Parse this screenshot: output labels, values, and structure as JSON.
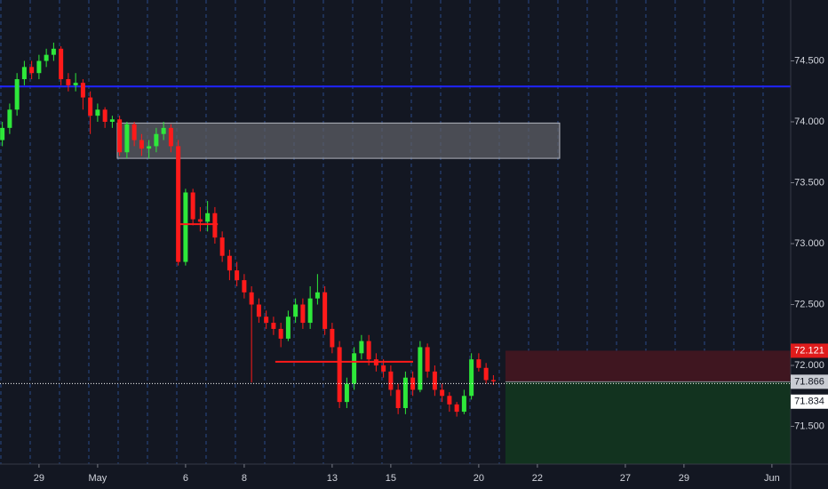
{
  "chart_data": {
    "type": "candlestick",
    "x": [
      -1.25,
      -1,
      -0.75,
      -0.5,
      -0.25,
      0,
      0.25,
      0.5,
      0.75,
      1,
      1.25,
      1.5,
      1.75,
      2,
      2.25,
      2.5,
      2.75,
      3,
      3.25,
      3.5,
      3.75,
      4,
      4.25,
      4.5,
      4.75,
      5,
      5.25,
      5.5,
      5.75,
      6,
      6.25,
      6.5,
      6.75,
      7,
      7.25,
      7.5,
      7.75,
      8,
      8.25,
      8.5,
      8.75,
      9,
      9.25,
      9.5,
      9.75,
      10,
      10.25,
      10.5,
      10.75,
      11,
      11.25,
      11.5,
      11.75,
      12,
      12.25,
      12.5,
      12.75,
      13,
      13.25,
      13.5,
      13.75,
      14,
      14.25,
      14.5,
      14.75,
      15,
      15.25,
      15.5
    ],
    "open": [
      73.85,
      73.95,
      74.1,
      74.35,
      74.45,
      74.4,
      74.5,
      74.55,
      74.6,
      74.35,
      74.3,
      74.32,
      74.2,
      74.05,
      74.1,
      74.0,
      74.02,
      73.75,
      73.98,
      73.85,
      73.78,
      73.8,
      73.9,
      73.95,
      73.8,
      72.85,
      73.42,
      73.2,
      73.18,
      73.25,
      73.05,
      72.9,
      72.78,
      72.7,
      72.6,
      72.5,
      72.4,
      72.35,
      72.3,
      72.22,
      72.4,
      72.5,
      72.35,
      72.55,
      72.6,
      72.3,
      72.15,
      71.7,
      71.85,
      72.1,
      72.2,
      72.05,
      72.0,
      71.95,
      71.8,
      71.65,
      71.9,
      71.8,
      72.15,
      71.95,
      71.8,
      71.75,
      71.68,
      71.62,
      71.75,
      72.05,
      71.98,
      71.88
    ],
    "high": [
      74.0,
      74.15,
      74.4,
      74.5,
      74.5,
      74.55,
      74.6,
      74.65,
      74.62,
      74.4,
      74.4,
      74.35,
      74.25,
      74.15,
      74.12,
      74.05,
      74.05,
      74.0,
      74.0,
      73.9,
      73.85,
      73.95,
      74.0,
      73.98,
      73.85,
      73.45,
      73.45,
      73.3,
      73.35,
      73.3,
      73.1,
      72.95,
      72.85,
      72.75,
      72.65,
      72.55,
      72.45,
      72.4,
      72.35,
      72.45,
      72.55,
      72.55,
      72.65,
      72.75,
      72.65,
      72.35,
      72.2,
      71.9,
      72.15,
      72.25,
      72.25,
      72.1,
      72.05,
      72.0,
      71.85,
      71.95,
      71.95,
      72.2,
      72.18,
      72.0,
      71.85,
      71.78,
      71.7,
      71.8,
      72.1,
      72.1,
      72.02,
      71.92
    ],
    "low": [
      73.8,
      73.9,
      74.05,
      74.3,
      74.35,
      74.35,
      74.45,
      74.5,
      74.3,
      74.25,
      74.25,
      74.1,
      73.9,
      74.0,
      73.95,
      73.95,
      73.72,
      73.7,
      73.8,
      73.72,
      73.7,
      73.75,
      73.85,
      73.75,
      72.82,
      72.82,
      73.15,
      73.1,
      73.1,
      73.0,
      72.85,
      72.7,
      72.65,
      72.55,
      71.86,
      72.35,
      72.3,
      72.25,
      72.15,
      72.2,
      72.35,
      72.3,
      72.3,
      72.5,
      72.25,
      72.1,
      71.65,
      71.65,
      71.8,
      72.05,
      72.0,
      71.95,
      71.9,
      71.75,
      71.6,
      71.6,
      71.75,
      71.78,
      71.9,
      71.75,
      71.7,
      71.62,
      71.58,
      71.6,
      71.72,
      71.95,
      71.85,
      71.84
    ],
    "close": [
      73.95,
      74.1,
      74.35,
      74.45,
      74.4,
      74.5,
      74.55,
      74.6,
      74.35,
      74.3,
      74.32,
      74.2,
      74.05,
      74.1,
      74.0,
      74.02,
      73.75,
      73.98,
      73.85,
      73.78,
      73.8,
      73.9,
      73.95,
      73.8,
      72.85,
      73.42,
      73.2,
      73.18,
      73.25,
      73.05,
      72.9,
      72.78,
      72.7,
      72.6,
      72.5,
      72.4,
      72.35,
      72.3,
      72.22,
      72.4,
      72.5,
      72.35,
      72.55,
      72.6,
      72.3,
      72.15,
      71.7,
      71.85,
      72.1,
      72.2,
      72.05,
      72.0,
      71.95,
      71.8,
      71.65,
      71.9,
      71.8,
      72.15,
      71.95,
      71.8,
      71.75,
      71.68,
      71.62,
      71.75,
      72.05,
      71.98,
      71.88,
      71.87
    ],
    "up_color": "#2ee83a",
    "down_color": "#ff1a1a",
    "xlim": [
      -1.33,
      25.64
    ],
    "ylim": [
      71.19,
      75.0
    ],
    "xticks": [
      {
        "value": 0,
        "label": "29"
      },
      {
        "value": 2,
        "label": "May"
      },
      {
        "value": 5,
        "label": "6"
      },
      {
        "value": 7,
        "label": "8"
      },
      {
        "value": 10,
        "label": "13"
      },
      {
        "value": 12,
        "label": "15"
      },
      {
        "value": 15,
        "label": "20"
      },
      {
        "value": 17,
        "label": "22"
      },
      {
        "value": 20,
        "label": "27"
      },
      {
        "value": 22,
        "label": "29"
      },
      {
        "value": 25,
        "label": "Jun"
      }
    ],
    "yticks": [
      {
        "value": 71.5,
        "label": "71.500"
      },
      {
        "value": 72.0,
        "label": "72.000"
      },
      {
        "value": 72.5,
        "label": "72.500"
      },
      {
        "value": 73.0,
        "label": "73.000"
      },
      {
        "value": 73.5,
        "label": "73.500"
      },
      {
        "value": 74.0,
        "label": "74.000"
      },
      {
        "value": 74.5,
        "label": "74.500"
      }
    ],
    "day_separators": true,
    "hlines": [
      {
        "value": 74.29,
        "color": "#1f24ff"
      }
    ],
    "zones": [
      {
        "x0": 2.67,
        "x1": 17.76,
        "y0": 73.7,
        "y1": 73.99,
        "color": "#5d5f66"
      }
    ],
    "segments": [
      {
        "x0": 4.7,
        "x1": 6.1,
        "value": 73.16,
        "color": "#ff1a1a"
      },
      {
        "x0": 8.06,
        "x1": 12.76,
        "value": 72.03,
        "color": "#ff1a1a"
      }
    ],
    "position": {
      "x0": 15.91,
      "entry": 71.866,
      "stop": 72.121,
      "target": 71.19,
      "stop_color": "#3f1620",
      "target_color": "#12331f"
    },
    "price_labels": [
      {
        "value": 72.121,
        "bg": "#e01c1c",
        "fg": "#ffffff"
      },
      {
        "value": 71.866,
        "bg": "#c9ccd3",
        "fg": "#131722"
      },
      {
        "value": 71.834,
        "bg": "#ffffff",
        "fg": "#131722"
      }
    ]
  }
}
